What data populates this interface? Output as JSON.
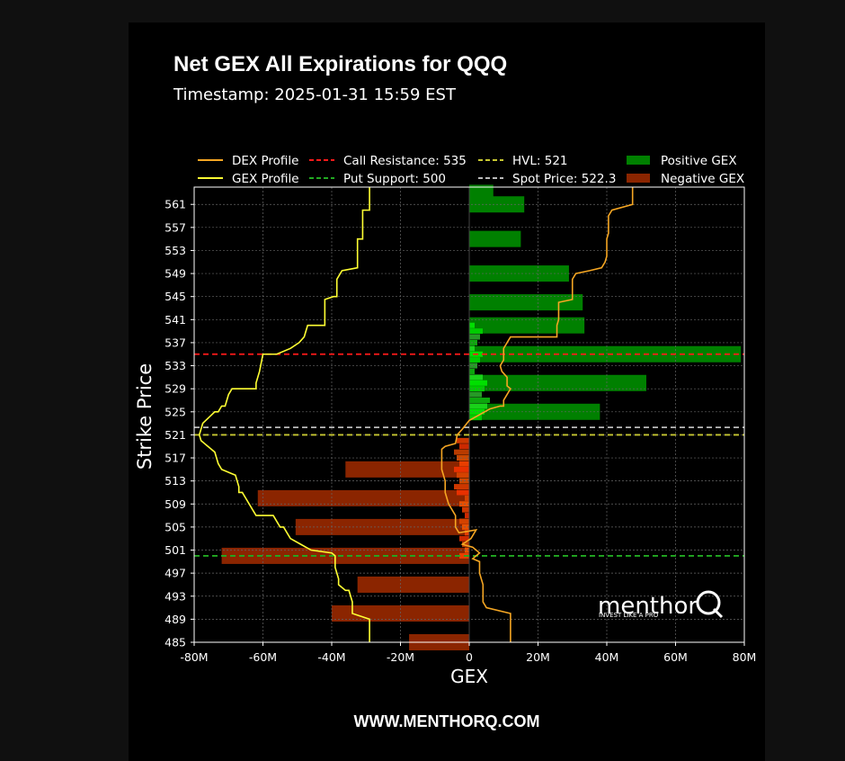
{
  "page": {
    "title": "Net GEX All Expirations for QQQ",
    "subtitle": "Timestamp: 2025-01-31 15:59 EST",
    "footer": "WWW.MENTHORQ.COM",
    "logo_text": "menthor",
    "logo_tagline": "INVEST LIKE A PRO"
  },
  "colors": {
    "background": "#000000",
    "outer_background": "#101010",
    "positive_gex": "#008000",
    "negative_gex": "#8b2500",
    "dex_profile": "#f5a623",
    "gex_profile": "#ffff33",
    "call_resistance": "#ff1a1a",
    "put_support": "#22aa22",
    "hvl": "#c8c832",
    "spot_price": "#bbbbbb",
    "grid": "#666666"
  },
  "chart_data": {
    "type": "bar",
    "orientation": "horizontal",
    "xlabel": "GEX",
    "ylabel": "Strike Price",
    "xlim": [
      -80000000,
      80000000
    ],
    "ylim": [
      485,
      564
    ],
    "x_ticks": [
      {
        "value": -80000000,
        "label": "-80M"
      },
      {
        "value": -60000000,
        "label": "-60M"
      },
      {
        "value": -40000000,
        "label": "-40M"
      },
      {
        "value": -20000000,
        "label": "-20M"
      },
      {
        "value": 0,
        "label": "0"
      },
      {
        "value": 20000000,
        "label": "20M"
      },
      {
        "value": 40000000,
        "label": "40M"
      },
      {
        "value": 60000000,
        "label": "60M"
      },
      {
        "value": 80000000,
        "label": "80M"
      }
    ],
    "y_ticks": [
      485,
      489,
      493,
      497,
      501,
      505,
      509,
      513,
      517,
      521,
      525,
      529,
      533,
      537,
      541,
      545,
      549,
      553,
      557,
      561
    ],
    "grid": true,
    "legend_position": "top",
    "legend": [
      {
        "label": "DEX Profile",
        "kind": "line",
        "key": "dex_profile"
      },
      {
        "label": "GEX Profile",
        "kind": "line",
        "key": "gex_profile"
      },
      {
        "label": "Call Resistance: 535",
        "kind": "dashed",
        "key": "call_resistance"
      },
      {
        "label": "Put Support: 500",
        "kind": "dashed",
        "key": "put_support"
      },
      {
        "label": "HVL: 521",
        "kind": "dashed",
        "key": "hvl"
      },
      {
        "label": "Spot Price: 522.3",
        "kind": "dashed",
        "key": "spot_price"
      },
      {
        "label": "Positive GEX",
        "kind": "patch",
        "key": "positive_gex"
      },
      {
        "label": "Negative GEX",
        "kind": "patch",
        "key": "negative_gex"
      }
    ],
    "levels": [
      {
        "label": "Call Resistance: 535",
        "strike": 535,
        "key": "call_resistance"
      },
      {
        "label": "Put Support: 500",
        "strike": 500,
        "key": "put_support"
      },
      {
        "label": "HVL: 521",
        "strike": 521,
        "key": "hvl"
      },
      {
        "label": "Spot Price: 522.3",
        "strike": 522.3,
        "key": "spot_price"
      }
    ],
    "series": [
      {
        "name": "Positive GEX",
        "strikes": [
          563,
          561,
          555,
          549,
          544,
          540,
          535,
          530,
          525
        ],
        "values": [
          7000000,
          16000000,
          15000000,
          29000000,
          33000000,
          33500000,
          79000000,
          51500000,
          38000000
        ]
      },
      {
        "name": "Negative GEX",
        "strikes": [
          515,
          510,
          505,
          500,
          495,
          490,
          485
        ],
        "values": [
          -36000000,
          -61500000,
          -50500000,
          -72000000,
          -32500000,
          -40000000,
          -17500000
        ]
      }
    ],
    "profiles": [
      {
        "name": "GEX Profile",
        "points": [
          [
            -29,
            565
          ],
          [
            -29,
            560
          ],
          [
            -31,
            560
          ],
          [
            -31,
            555
          ],
          [
            -32.5,
            555
          ],
          [
            -32.5,
            550
          ],
          [
            -37,
            549.5
          ],
          [
            -38.5,
            548
          ],
          [
            -38.5,
            545
          ],
          [
            -39.5,
            545
          ],
          [
            -42,
            544.5
          ],
          [
            -42,
            540
          ],
          [
            -47,
            540
          ],
          [
            -48,
            538
          ],
          [
            -49.5,
            537
          ],
          [
            -52,
            536
          ],
          [
            -56,
            535
          ],
          [
            -60,
            535
          ],
          [
            -61,
            532
          ],
          [
            -62,
            530
          ],
          [
            -62,
            529
          ],
          [
            -69,
            529
          ],
          [
            -70,
            528
          ],
          [
            -71,
            526
          ],
          [
            -72,
            526
          ],
          [
            -73,
            525
          ],
          [
            -74,
            525
          ],
          [
            -77.5,
            523
          ],
          [
            -78.5,
            521
          ],
          [
            -78,
            520
          ],
          [
            -76,
            519
          ],
          [
            -74,
            518
          ],
          [
            -73,
            516
          ],
          [
            -72,
            515
          ],
          [
            -68,
            514
          ],
          [
            -67,
            512
          ],
          [
            -67,
            511
          ],
          [
            -66,
            511
          ],
          [
            -65,
            510
          ],
          [
            -63,
            508
          ],
          [
            -62,
            507
          ],
          [
            -57,
            507
          ],
          [
            -55,
            505
          ],
          [
            -54,
            505
          ],
          [
            -53,
            504
          ],
          [
            -52,
            503
          ],
          [
            -49,
            502
          ],
          [
            -46,
            501
          ],
          [
            -40,
            500.5
          ],
          [
            -39,
            500
          ],
          [
            -39,
            498
          ],
          [
            -38,
            496
          ],
          [
            -38,
            495
          ],
          [
            -36,
            494
          ],
          [
            -35,
            494
          ],
          [
            -34,
            492
          ],
          [
            -34,
            490
          ],
          [
            -29,
            489
          ],
          [
            -29,
            484
          ]
        ]
      },
      {
        "name": "DEX Profile",
        "points": [
          [
            47.5,
            565
          ],
          [
            47.5,
            561
          ],
          [
            41.5,
            560
          ],
          [
            40.5,
            559
          ],
          [
            40.5,
            558
          ],
          [
            40.5,
            556
          ],
          [
            40,
            555
          ],
          [
            40,
            552
          ],
          [
            39.5,
            551
          ],
          [
            38.5,
            550
          ],
          [
            35,
            549.5
          ],
          [
            31,
            549
          ],
          [
            30,
            548
          ],
          [
            30,
            546
          ],
          [
            30,
            545
          ],
          [
            30,
            544.5
          ],
          [
            26,
            544
          ],
          [
            26,
            543
          ],
          [
            26,
            541
          ],
          [
            25.5,
            540
          ],
          [
            25.5,
            538
          ],
          [
            12,
            538
          ],
          [
            11,
            537
          ],
          [
            10,
            536
          ],
          [
            10,
            535
          ],
          [
            10,
            534
          ],
          [
            9,
            533
          ],
          [
            9.5,
            532
          ],
          [
            11,
            531
          ],
          [
            11,
            529.5
          ],
          [
            12,
            529
          ],
          [
            11,
            528
          ],
          [
            10,
            527
          ],
          [
            10,
            526
          ],
          [
            9,
            526
          ],
          [
            6,
            525.5
          ],
          [
            3,
            524.5
          ],
          [
            0,
            523.5
          ],
          [
            -2,
            522
          ],
          [
            -3.5,
            521
          ],
          [
            -4,
            519.5
          ],
          [
            -7,
            519
          ],
          [
            -8,
            518.5
          ],
          [
            -8,
            517
          ],
          [
            -8,
            515
          ],
          [
            -7,
            513
          ],
          [
            -7,
            511
          ],
          [
            -6,
            509
          ],
          [
            -4,
            507
          ],
          [
            -4,
            505
          ],
          [
            -3,
            504
          ],
          [
            2,
            504.5
          ],
          [
            0.5,
            503
          ],
          [
            -2,
            502
          ],
          [
            1,
            501.5
          ],
          [
            3,
            500.5
          ],
          [
            1,
            499.5
          ],
          [
            3,
            499
          ],
          [
            3,
            497
          ],
          [
            4,
            495
          ],
          [
            4,
            492
          ],
          [
            5,
            491
          ],
          [
            12,
            490
          ],
          [
            12,
            488
          ],
          [
            12,
            486
          ],
          [
            12,
            484
          ]
        ]
      }
    ]
  }
}
